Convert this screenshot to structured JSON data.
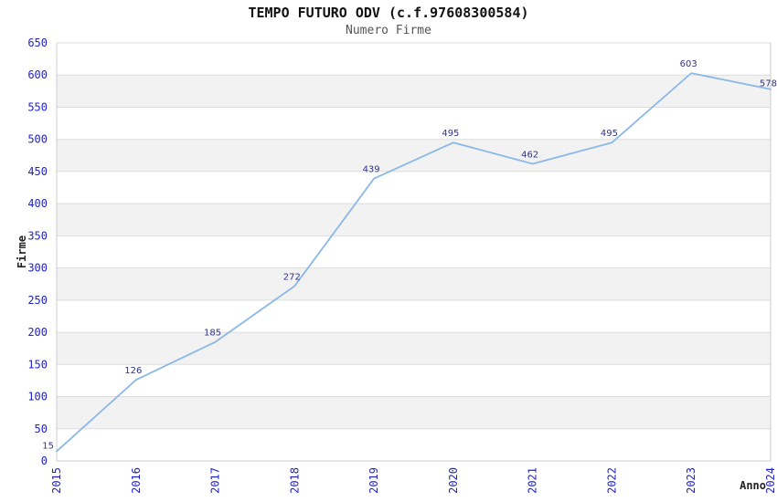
{
  "chart_data": {
    "type": "line",
    "title": "TEMPO FUTURO ODV (c.f.97608300584)",
    "subtitle": "Numero Firme",
    "x": [
      2015,
      2016,
      2017,
      2018,
      2019,
      2020,
      2021,
      2022,
      2023,
      2024
    ],
    "series": [
      {
        "name": "Numero Firme",
        "values": [
          15,
          126,
          185,
          272,
          439,
          495,
          462,
          495,
          603,
          578
        ]
      }
    ],
    "data_labels_visible": true,
    "xlabel": "Anno",
    "ylabel": "Firme",
    "ylim": [
      0,
      650
    ],
    "ytick_step": 50,
    "xtick_rotation": 90,
    "grid": "horizontal",
    "alternate_bands": true,
    "legend": "none",
    "colors": {
      "line": "#8ab8e8",
      "tick_label": "#2222cc",
      "data_label": "#333380",
      "band": "#f2f2f2",
      "gridline": "#dddddd",
      "border": "#cccccc",
      "title": "#111111",
      "subtitle": "#555555",
      "axis_title": "#222222",
      "background": "#ffffff"
    }
  }
}
